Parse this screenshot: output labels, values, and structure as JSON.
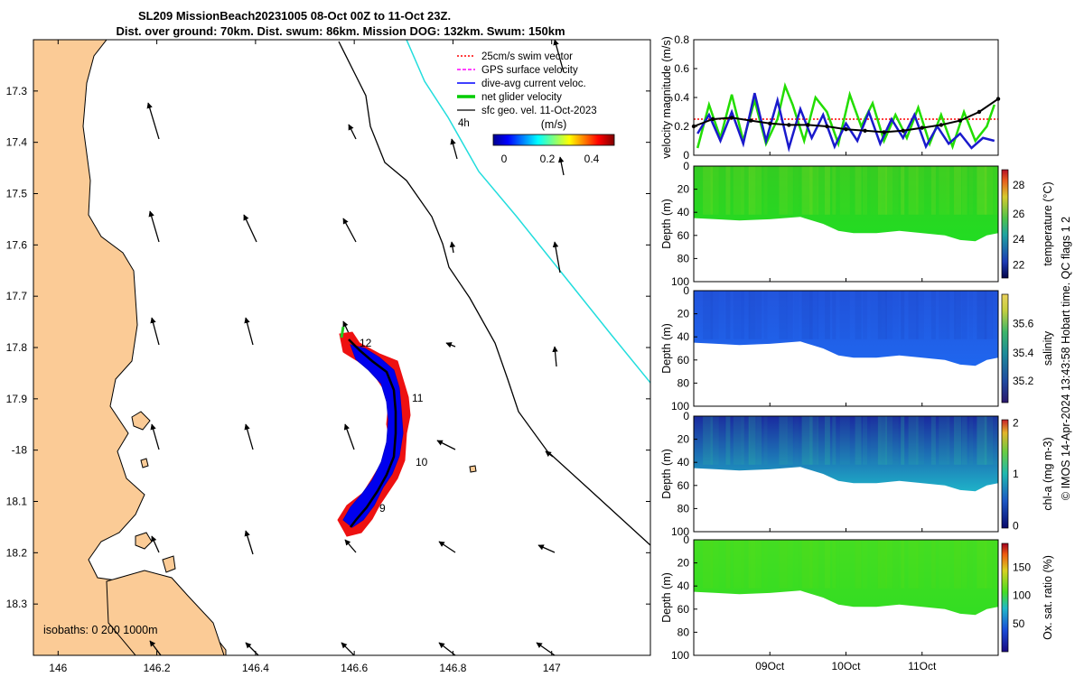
{
  "title": {
    "line1": "SL209 MissionBeach20231005 08-Oct 00Z to 11-Oct 23Z.",
    "line2": "Dist. over ground: 70km. Dist. swum: 86km. Mission DOG: 132km. Swum: 150km"
  },
  "credit": "© IMOS 14-Apr-2024 13:43:58 Hobart time. QC flags 1  2",
  "map": {
    "legend": [
      {
        "label": "25cm/s swim vector",
        "color": "#ff0000",
        "style": "dotted"
      },
      {
        "label": "GPS surface velocity",
        "color": "#ff00ff",
        "style": "dashed"
      },
      {
        "label": "dive-avg current veloc.",
        "color": "#0000ff",
        "style": "solid"
      },
      {
        "label": "net glider velocity",
        "color": "#00cc00",
        "style": "thick"
      },
      {
        "label": "sfc geo. vel. 11-Oct-2023",
        "color": "#000000",
        "style": "solid"
      }
    ],
    "duration_label": "4h",
    "colorbar": {
      "title": "(m/s)",
      "ticks": [
        "0",
        "0.2",
        "0.4"
      ],
      "range": [
        0,
        0.5
      ]
    },
    "isobaths_label": "isobaths: 0   200  1000m",
    "day_labels": [
      "12",
      "11",
      "10",
      "9"
    ],
    "x_range": [
      145.95,
      147.2
    ],
    "y_range": [
      18.4,
      17.2
    ],
    "xticks": [
      {
        "v": 146,
        "t": "146"
      },
      {
        "v": 146.2,
        "t": "146.2"
      },
      {
        "v": 146.4,
        "t": "146.4"
      },
      {
        "v": 146.6,
        "t": "146.6"
      },
      {
        "v": 146.8,
        "t": "146.8"
      },
      {
        "v": 147,
        "t": "147"
      }
    ],
    "yticks": [
      {
        "v": 17.3,
        "t": "17.3"
      },
      {
        "v": 17.4,
        "t": "17.4"
      },
      {
        "v": 17.5,
        "t": "17.5"
      },
      {
        "v": 17.6,
        "t": "17.6"
      },
      {
        "v": 17.7,
        "t": "17.7"
      },
      {
        "v": 17.8,
        "t": "17.8"
      },
      {
        "v": 17.9,
        "t": "17.9"
      },
      {
        "v": 18.0,
        "t": "-18"
      },
      {
        "v": 18.1,
        "t": "18.1"
      },
      {
        "v": 18.2,
        "t": "18.2"
      },
      {
        "v": 18.3,
        "t": "18.3"
      }
    ]
  },
  "chart_data": [
    {
      "type": "line",
      "title": "velocity magnitude",
      "ylabel": "velocity magnitude (m/s)",
      "ylim": [
        0,
        0.8
      ],
      "yticks": [
        "0",
        "0.2",
        "0.4",
        "0.6",
        "0.8"
      ],
      "xlim": [
        0,
        4
      ],
      "series": [
        {
          "name": "swim speed (red dotted)",
          "color": "#ff0000",
          "x": [
            0,
            4
          ],
          "values": [
            0.25,
            0.25
          ]
        },
        {
          "name": "net glider velocity (green)",
          "color": "#22dd00",
          "x": [
            0.05,
            0.2,
            0.35,
            0.5,
            0.65,
            0.8,
            0.95,
            1.1,
            1.2,
            1.3,
            1.45,
            1.6,
            1.75,
            1.9,
            2.05,
            2.2,
            2.35,
            2.5,
            2.65,
            2.8,
            2.95,
            3.1,
            3.25,
            3.4,
            3.55,
            3.7,
            3.85,
            3.95
          ],
          "values": [
            0.05,
            0.35,
            0.12,
            0.42,
            0.1,
            0.38,
            0.08,
            0.25,
            0.48,
            0.35,
            0.1,
            0.4,
            0.3,
            0.08,
            0.42,
            0.2,
            0.36,
            0.1,
            0.28,
            0.12,
            0.33,
            0.08,
            0.28,
            0.06,
            0.3,
            0.1,
            0.2,
            0.35
          ]
        },
        {
          "name": "dive-avg current (blue)",
          "color": "#1a1acc",
          "x": [
            0.05,
            0.2,
            0.35,
            0.5,
            0.65,
            0.8,
            0.95,
            1.1,
            1.25,
            1.4,
            1.55,
            1.7,
            1.85,
            2.0,
            2.15,
            2.3,
            2.45,
            2.6,
            2.75,
            2.9,
            3.05,
            3.2,
            3.35,
            3.5,
            3.65,
            3.8,
            3.95
          ],
          "values": [
            0.15,
            0.28,
            0.1,
            0.3,
            0.08,
            0.43,
            0.1,
            0.38,
            0.05,
            0.32,
            0.12,
            0.28,
            0.06,
            0.22,
            0.1,
            0.3,
            0.08,
            0.25,
            0.12,
            0.28,
            0.06,
            0.2,
            0.08,
            0.15,
            0.05,
            0.12,
            0.1
          ]
        },
        {
          "name": "glider speed smoothed (black)",
          "color": "#000000",
          "x": [
            0,
            0.25,
            0.5,
            0.75,
            1.0,
            1.25,
            1.5,
            1.75,
            2.0,
            2.25,
            2.5,
            2.75,
            3.0,
            3.25,
            3.5,
            3.75,
            4.0
          ],
          "values": [
            0.2,
            0.25,
            0.26,
            0.24,
            0.22,
            0.21,
            0.21,
            0.2,
            0.18,
            0.17,
            0.16,
            0.17,
            0.19,
            0.21,
            0.24,
            0.3,
            0.39
          ]
        }
      ]
    },
    {
      "type": "heatmap",
      "title": "temperature",
      "ylabel": "Depth (m)",
      "cbar_label": "temperature (°C)",
      "cbar_ticks": [
        "22",
        "24",
        "26",
        "28"
      ],
      "ylim": [
        0,
        100
      ],
      "yticks": [
        "0",
        "20",
        "40",
        "60",
        "80",
        "100"
      ],
      "color_top": "#33cc22",
      "color_bottom": "#22dd22",
      "accent": "#aadd22"
    },
    {
      "type": "heatmap",
      "title": "salinity",
      "ylabel": "Depth (m)",
      "cbar_label": "salinity",
      "cbar_ticks": [
        "35.2",
        "35.4",
        "35.6"
      ],
      "ylim": [
        0,
        100
      ],
      "yticks": [
        "0",
        "20",
        "40",
        "60",
        "80",
        "100"
      ],
      "color_top": "#2255dd",
      "color_bottom": "#1f66ee",
      "accent": "#1a3fbf"
    },
    {
      "type": "heatmap",
      "title": "chlorophyll-a",
      "ylabel": "Depth (m)",
      "cbar_label": "chl-a (mg m-3)",
      "cbar_ticks": [
        "0",
        "1",
        "2"
      ],
      "ylim": [
        0,
        100
      ],
      "yticks": [
        "0",
        "20",
        "40",
        "60",
        "80",
        "100"
      ],
      "color_top": "#1a2a9f",
      "color_bottom": "#1fb2c8",
      "accent": "#33cc99"
    },
    {
      "type": "heatmap",
      "title": "oxygen saturation",
      "ylabel": "Depth (m)",
      "cbar_label": "Ox. sat. ratio (%)",
      "cbar_ticks": [
        "50",
        "100",
        "150"
      ],
      "ylim": [
        0,
        100
      ],
      "yticks": [
        "0",
        "20",
        "40",
        "60",
        "80",
        "100"
      ],
      "color_top": "#44dd22",
      "color_bottom": "#33dd22",
      "accent": "#66dd11"
    }
  ],
  "time_axis": {
    "xlim": [
      0,
      4
    ],
    "ticks": [
      {
        "v": 1,
        "t": "09Oct"
      },
      {
        "v": 2,
        "t": "10Oct"
      },
      {
        "v": 3,
        "t": "11Oct"
      }
    ]
  }
}
